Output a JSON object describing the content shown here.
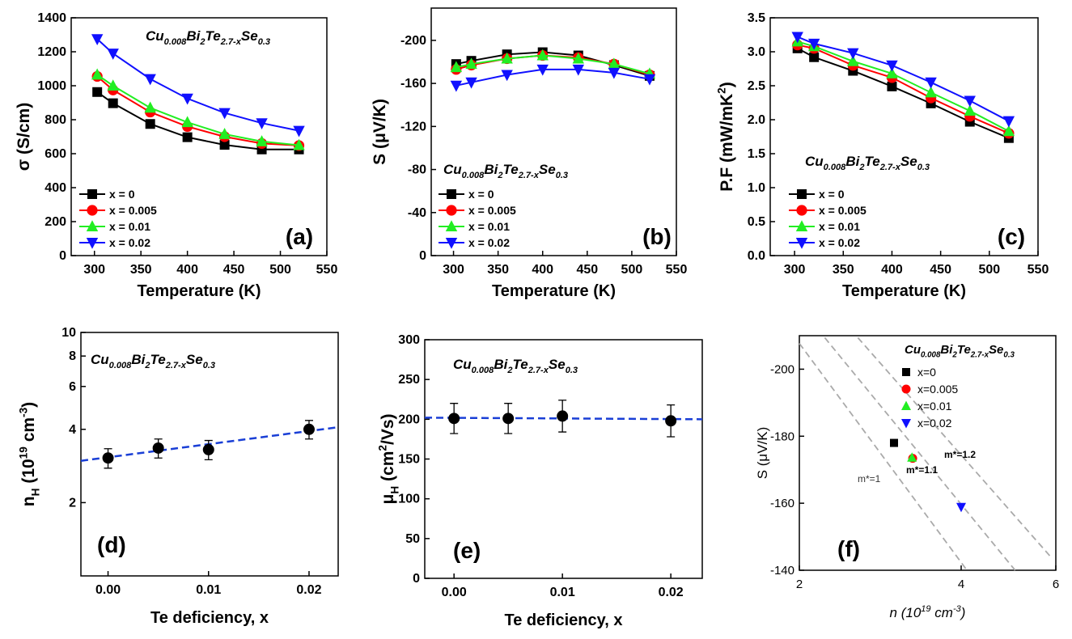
{
  "chart_data": [
    {
      "type": "line",
      "label": "(a)",
      "formula": [
        {
          "text": "Cu"
        },
        {
          "text": "0.008",
          "style": "sub"
        },
        {
          "text": "Bi"
        },
        {
          "text": "2",
          "style": "sub"
        },
        {
          "text": "Te"
        },
        {
          "text": "2.7-x",
          "style": "sub"
        },
        {
          "text": "Se"
        },
        {
          "text": "0.3",
          "style": "sub"
        }
      ],
      "xlabel": "Temperature (K)",
      "ylabel": [
        {
          "text": "σ (S/cm)"
        }
      ],
      "x": [
        303,
        320,
        360,
        400,
        440,
        480,
        520
      ],
      "xlim": [
        275,
        550
      ],
      "xticks": [
        300,
        350,
        400,
        450,
        500,
        550
      ],
      "ylim": [
        0,
        1400
      ],
      "yticks": [
        0,
        200,
        400,
        600,
        800,
        1000,
        1200,
        1400
      ],
      "series": [
        {
          "name": "x = 0",
          "color": "#000000",
          "marker": "square",
          "values": [
            963,
            897,
            775,
            697,
            652,
            625,
            625
          ]
        },
        {
          "name": "x = 0.005",
          "color": "#ff0000",
          "marker": "circle",
          "values": [
            1055,
            975,
            845,
            760,
            700,
            660,
            648
          ]
        },
        {
          "name": "x = 0.01",
          "color": "#22ee22",
          "marker": "triangle-up",
          "values": [
            1065,
            1000,
            870,
            785,
            715,
            672,
            650
          ]
        },
        {
          "name": "x = 0.02",
          "color": "#1010ff",
          "marker": "triangle-down",
          "values": [
            1275,
            1190,
            1040,
            925,
            840,
            780,
            735
          ]
        }
      ]
    },
    {
      "type": "line",
      "label": "(b)",
      "formula": [
        {
          "text": "Cu"
        },
        {
          "text": "0.008",
          "style": "sub"
        },
        {
          "text": "Bi"
        },
        {
          "text": "2",
          "style": "sub"
        },
        {
          "text": "Te"
        },
        {
          "text": "2.7-x",
          "style": "sub"
        },
        {
          "text": "Se"
        },
        {
          "text": "0.3",
          "style": "sub"
        }
      ],
      "xlabel": "Temperature (K)",
      "ylabel": [
        {
          "text": "S (μV/K)"
        }
      ],
      "x": [
        303,
        320,
        360,
        400,
        440,
        480,
        520
      ],
      "xlim": [
        275,
        550
      ],
      "xticks": [
        300,
        350,
        400,
        450,
        500,
        550
      ],
      "ylim": [
        0,
        -230
      ],
      "yticks": [
        0,
        -40,
        -80,
        -120,
        -160,
        -200
      ],
      "series": [
        {
          "name": "x = 0",
          "color": "#000000",
          "marker": "square",
          "values": [
            -178,
            -181,
            -187,
            -189,
            -186,
            -177,
            -167
          ]
        },
        {
          "name": "x = 0.005",
          "color": "#ff0000",
          "marker": "circle",
          "values": [
            -173,
            -177,
            -183,
            -186,
            -184,
            -178,
            -168
          ]
        },
        {
          "name": "x = 0.01",
          "color": "#22ee22",
          "marker": "triangle-up",
          "values": [
            -175,
            -178,
            -183,
            -186,
            -183,
            -178,
            -169
          ]
        },
        {
          "name": "x = 0.02",
          "color": "#1010ff",
          "marker": "triangle-down",
          "values": [
            -158,
            -161,
            -168,
            -173,
            -173,
            -170,
            -164
          ]
        }
      ]
    },
    {
      "type": "line",
      "label": "(c)",
      "formula": [
        {
          "text": "Cu"
        },
        {
          "text": "0.008",
          "style": "sub"
        },
        {
          "text": "Bi"
        },
        {
          "text": "2",
          "style": "sub"
        },
        {
          "text": "Te"
        },
        {
          "text": "2.7-x",
          "style": "sub"
        },
        {
          "text": "Se"
        },
        {
          "text": "0.3",
          "style": "sub"
        }
      ],
      "xlabel": "Temperature (K)",
      "ylabel": [
        {
          "text": "P.F (mW/mK"
        },
        {
          "text": "2",
          "style": "sup"
        },
        {
          "text": ")"
        }
      ],
      "x": [
        303,
        320,
        360,
        400,
        440,
        480,
        520
      ],
      "xlim": [
        275,
        550
      ],
      "xticks": [
        300,
        350,
        400,
        450,
        500,
        550
      ],
      "ylim": [
        0,
        3.5
      ],
      "yticks": [
        {
          "value": 0,
          "label": "0.0"
        },
        0.5,
        {
          "value": 1,
          "label": "1.0"
        },
        1.5,
        {
          "value": 2,
          "label": "2.0"
        },
        2.5,
        {
          "value": 3,
          "label": "3.0"
        },
        3.5
      ],
      "series": [
        {
          "name": "x = 0",
          "color": "#000000",
          "marker": "square",
          "values": [
            3.05,
            2.92,
            2.72,
            2.49,
            2.24,
            1.97,
            1.73
          ]
        },
        {
          "name": "x = 0.005",
          "color": "#ff0000",
          "marker": "circle",
          "values": [
            3.1,
            3.05,
            2.8,
            2.62,
            2.32,
            2.05,
            1.8
          ]
        },
        {
          "name": "x = 0.01",
          "color": "#22ee22",
          "marker": "triangle-up",
          "values": [
            3.15,
            3.08,
            2.86,
            2.68,
            2.4,
            2.13,
            1.83
          ]
        },
        {
          "name": "x = 0.02",
          "color": "#1010ff",
          "marker": "triangle-down",
          "values": [
            3.22,
            3.12,
            2.98,
            2.8,
            2.55,
            2.28,
            1.98
          ]
        }
      ]
    },
    {
      "type": "errorbar",
      "label": "(d)",
      "formula": [
        {
          "text": "Cu"
        },
        {
          "text": "0.008",
          "style": "sub"
        },
        {
          "text": "Bi"
        },
        {
          "text": "2",
          "style": "sub"
        },
        {
          "text": "Te"
        },
        {
          "text": "2.7-x",
          "style": "sub"
        },
        {
          "text": "Se"
        },
        {
          "text": "0.3",
          "style": "sub"
        }
      ],
      "xlabel": "Te deficiency, x",
      "ylabel": [
        {
          "text": "n"
        },
        {
          "text": "H",
          "style": "sub"
        },
        {
          "text": " (10"
        },
        {
          "text": "19",
          "style": "sup"
        },
        {
          "text": " cm"
        },
        {
          "text": "-3",
          "style": "sup"
        },
        {
          "text": ")"
        }
      ],
      "x": [
        0,
        0.005,
        0.01,
        0.02
      ],
      "values": [
        3.05,
        3.35,
        3.3,
        4.0
      ],
      "errors": [
        0.28,
        0.3,
        0.3,
        0.35
      ],
      "color": "#000000",
      "fit": {
        "x": [
          -0.0027,
          0.0229
        ],
        "values": [
          2.97,
          4.08
        ],
        "color": "#1a3fd6"
      },
      "xlim": [
        -0.0027,
        0.0229
      ],
      "xticks": [
        {
          "value": 0,
          "label": "0.00"
        },
        0.01,
        0.02
      ],
      "yscale": "log",
      "ylim": [
        1,
        10
      ],
      "yticks": [
        2,
        4,
        6,
        8,
        10
      ]
    },
    {
      "type": "errorbar",
      "label": "(e)",
      "formula": [
        {
          "text": "Cu"
        },
        {
          "text": "0.008",
          "style": "sub"
        },
        {
          "text": "Bi"
        },
        {
          "text": "2",
          "style": "sub"
        },
        {
          "text": "Te"
        },
        {
          "text": "2.7-x",
          "style": "sub"
        },
        {
          "text": "Se"
        },
        {
          "text": "0.3",
          "style": "sub"
        }
      ],
      "xlabel": "Te deficiency, x",
      "ylabel": [
        {
          "text": "μ"
        },
        {
          "text": "H",
          "style": "sub"
        },
        {
          "text": " (cm"
        },
        {
          "text": "2",
          "style": "sup"
        },
        {
          "text": "/Vs)"
        }
      ],
      "x": [
        0,
        0.005,
        0.01,
        0.02
      ],
      "values": [
        201,
        201,
        204,
        198
      ],
      "errors": [
        19,
        19,
        20,
        20
      ],
      "color": "#000000",
      "fit": {
        "x": [
          -0.0027,
          0.0229
        ],
        "values": [
          202,
          200
        ],
        "color": "#1a3fd6"
      },
      "xlim": [
        -0.0027,
        0.0229
      ],
      "xticks": [
        {
          "value": 0,
          "label": "0.00"
        },
        0.01,
        0.02
      ],
      "ylim": [
        0,
        300
      ],
      "yticks": [
        0,
        50,
        100,
        150,
        200,
        250,
        300
      ]
    },
    {
      "type": "scatter",
      "label": "(f)",
      "formula": [
        {
          "text": "Cu"
        },
        {
          "text": "0.008",
          "style": "sub"
        },
        {
          "text": "Bi"
        },
        {
          "text": "2",
          "style": "sub"
        },
        {
          "text": "Te"
        },
        {
          "text": "2.7-x",
          "style": "sub"
        },
        {
          "text": "Se"
        },
        {
          "text": "0.3",
          "style": "sub"
        }
      ],
      "xlabel": [
        {
          "text": "n (10"
        },
        {
          "text": "19",
          "style": "sup"
        },
        {
          "text": " cm"
        },
        {
          "text": "-3",
          "style": "sup"
        },
        {
          "text": ")"
        }
      ],
      "ylabel": [
        {
          "text": "S (μV/K)"
        }
      ],
      "xscale": "log",
      "xlim": [
        2,
        6
      ],
      "xticks": [
        2,
        4,
        6
      ],
      "ylim": [
        -140,
        -210
      ],
      "yticks": [
        -140,
        -160,
        -180,
        -200
      ],
      "series": [
        {
          "name": "x=0",
          "color": "#000000",
          "marker": "square",
          "x": [
            3.0
          ],
          "values": [
            -178
          ]
        },
        {
          "name": "x=0.005",
          "color": "#ff0000",
          "marker": "circle",
          "x": [
            3.25
          ],
          "values": [
            -173.4
          ]
        },
        {
          "name": "x=0.01",
          "color": "#22ee22",
          "marker": "triangle-up",
          "x": [
            3.24
          ],
          "values": [
            -173.6
          ]
        },
        {
          "name": "x=0.02",
          "color": "#1010ff",
          "marker": "triangle-down",
          "x": [
            4.0
          ],
          "values": [
            -158.9
          ]
        }
      ],
      "curves": [
        {
          "label": "m*=1",
          "x": [
            2,
            4.1
          ],
          "values": [
            -207.7,
            -140
          ]
        },
        {
          "label": "m*=1.1",
          "x": [
            2.23,
            5.04
          ],
          "values": [
            -209.4,
            -140
          ]
        },
        {
          "label": "m*=1.2",
          "x": [
            2.57,
            5.9
          ],
          "values": [
            -209.4,
            -143.6
          ]
        }
      ],
      "curve_color": "#aaaaaa"
    }
  ]
}
